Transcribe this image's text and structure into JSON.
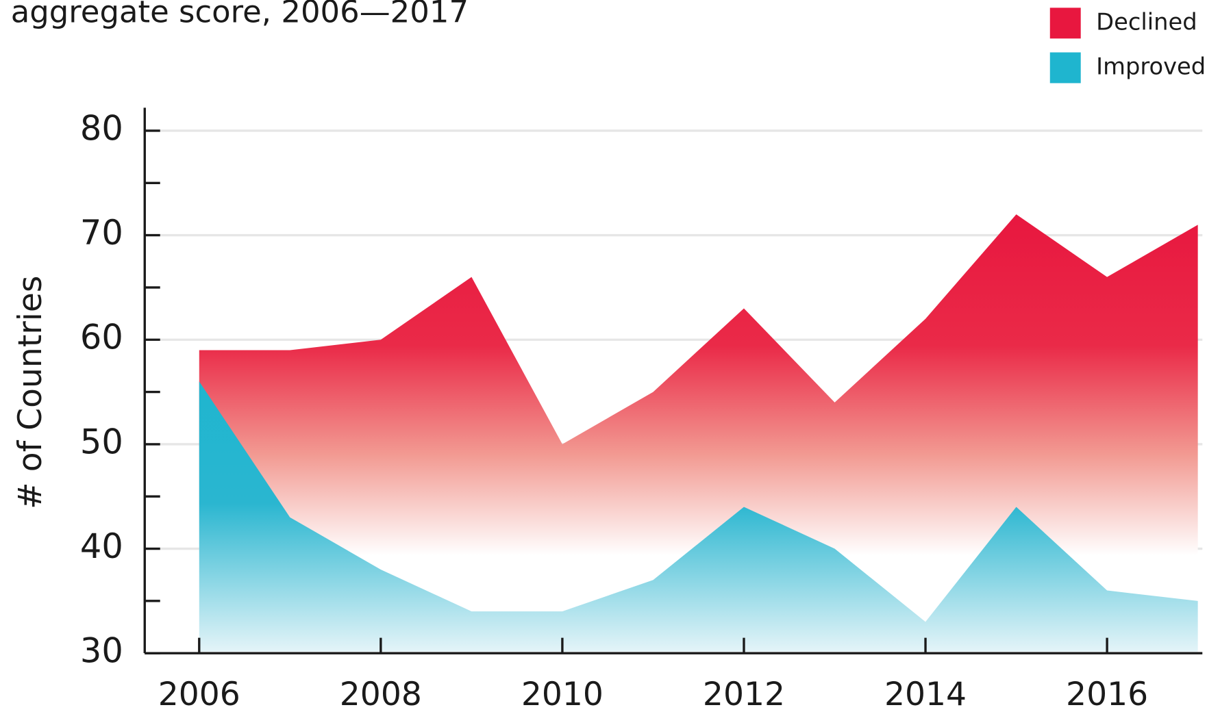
{
  "chart_data": {
    "type": "area",
    "title": "aggregate score, 2006—2017",
    "y_label": "# of Countries",
    "x": [
      2006,
      2007,
      2008,
      2009,
      2010,
      2011,
      2012,
      2013,
      2014,
      2015,
      2016,
      2017
    ],
    "series": [
      {
        "name": "Declined",
        "color": "#e8173f",
        "values": [
          59,
          59,
          60,
          66,
          50,
          55,
          63,
          54,
          62,
          72,
          66,
          71
        ]
      },
      {
        "name": "Improved",
        "color": "#1fb5cf",
        "values": [
          56,
          43,
          38,
          34,
          34,
          37,
          44,
          40,
          33,
          44,
          36,
          35
        ]
      }
    ],
    "xlim": [
      2005.4,
      2017.05
    ],
    "xticks": [
      2006,
      2008,
      2010,
      2012,
      2014,
      2016
    ],
    "ylim": [
      30,
      82.2
    ],
    "yticks": [
      30,
      40,
      50,
      60,
      70,
      80
    ],
    "grid": true,
    "legend": "top-right"
  }
}
